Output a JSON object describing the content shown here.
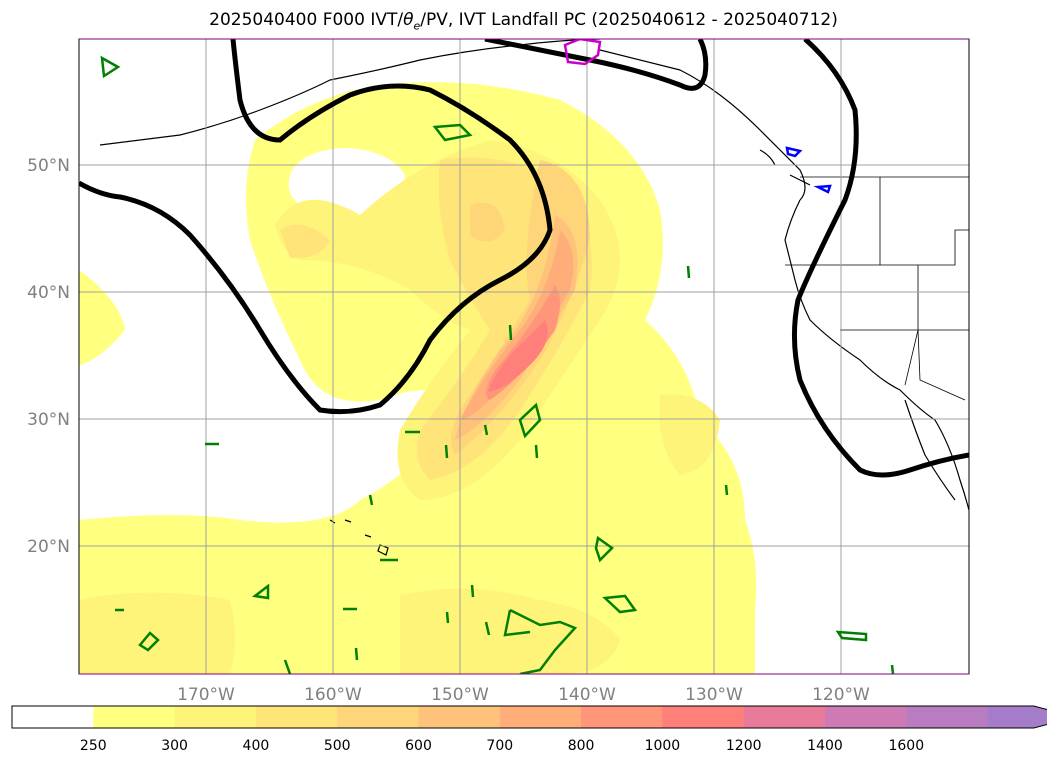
{
  "title": {
    "prefix": "2025040400 F000 IVT/",
    "theta": "θ",
    "theta_sub": "e",
    "suffix": "/PV, IVT Landfall PC (2025040612 - 2025040712)"
  },
  "map": {
    "lon_ticks": [
      "170°W",
      "160°W",
      "150°W",
      "140°W",
      "130°W",
      "120°W"
    ],
    "lat_ticks": [
      "50°N",
      "40°N",
      "30°N",
      "20°N"
    ]
  },
  "colorbar": {
    "levels": [
      "250",
      "300",
      "400",
      "500",
      "600",
      "700",
      "800",
      "1000",
      "1200",
      "1400",
      "1600"
    ],
    "colors": [
      "#ffff80",
      "#fff47a",
      "#ffe47a",
      "#ffd57a",
      "#ffc27a",
      "#ffae7a",
      "#ff967a",
      "#ff7f7a",
      "#e87b9a",
      "#cd7ab5",
      "#b97cc0",
      "#a57cc9"
    ],
    "under_color": "#ffffff",
    "extend": "max"
  },
  "contour_colors": {
    "pv": "#000000",
    "green": "#008000",
    "blue": "#0000ff",
    "magenta": "#cc00cc"
  }
}
